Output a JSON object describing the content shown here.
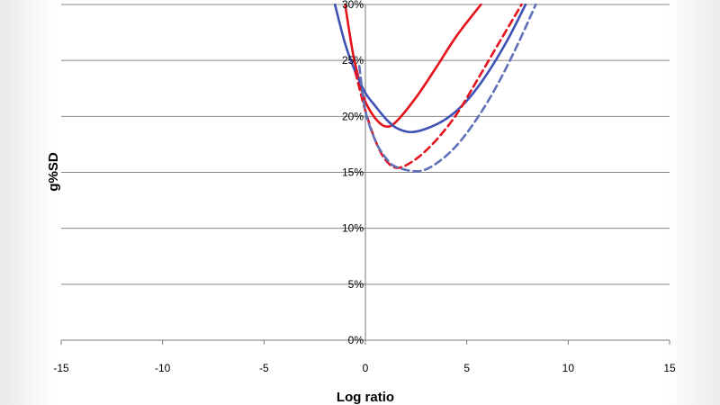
{
  "chart_data": {
    "type": "line",
    "title": "",
    "xlabel": "Log  ratio",
    "ylabel": "g%SD",
    "xlim": [
      -15,
      15
    ],
    "ylim": [
      0,
      30
    ],
    "x_ticks": [
      -15,
      -10,
      -5,
      0,
      5,
      10,
      15
    ],
    "y_ticks": [
      0,
      5,
      10,
      15,
      20,
      25,
      30
    ],
    "y_tick_labels": [
      "0%",
      "5%",
      "10%",
      "15%",
      "20%",
      "25%",
      "30%"
    ],
    "grid": "horizontal",
    "legend": "none",
    "series": [
      {
        "color": "#e3121c",
        "dash": "solid",
        "x": [
          -1.0,
          -0.6,
          -0.2,
          0,
          0.5,
          1.0,
          1.5,
          2.5,
          3.5,
          4.5,
          5.7
        ],
        "y": [
          30.0,
          25.5,
          22.5,
          21.3,
          19.8,
          19.1,
          19.5,
          21.7,
          24.4,
          27.2,
          30.0
        ]
      },
      {
        "color": "#3f51b5",
        "dash": "solid",
        "x": [
          -1.5,
          -1.0,
          -0.5,
          0,
          0.5,
          1.0,
          1.5,
          2.2,
          3.0,
          4.0,
          5.0,
          6.0,
          7.0,
          7.9
        ],
        "y": [
          30.0,
          26.5,
          24.0,
          22.1,
          20.9,
          19.8,
          19.0,
          18.6,
          18.9,
          19.8,
          21.4,
          23.8,
          26.8,
          30.0
        ]
      },
      {
        "color": "#e3121c",
        "dash": "dashed",
        "x": [
          -0.5,
          0,
          0.5,
          1.0,
          1.6,
          2.5,
          3.5,
          4.5,
          5.5,
          6.5,
          7.7
        ],
        "y": [
          24.0,
          20.5,
          17.8,
          16.1,
          15.4,
          16.2,
          17.9,
          20.2,
          23.2,
          26.3,
          30.0
        ]
      },
      {
        "color": "#6070b8",
        "dash": "dashed",
        "x": [
          -0.3,
          0,
          0.5,
          1.0,
          1.5,
          2.6,
          3.5,
          4.5,
          5.5,
          6.5,
          7.5,
          8.4
        ],
        "y": [
          24.5,
          20.5,
          17.8,
          16.3,
          15.5,
          15.1,
          15.8,
          17.4,
          19.8,
          22.8,
          26.4,
          30.0
        ]
      }
    ]
  }
}
